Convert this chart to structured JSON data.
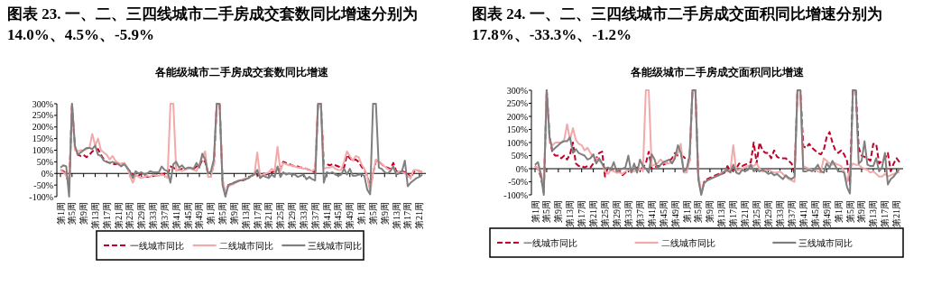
{
  "chart_data": [
    {
      "type": "line",
      "title": "图表 23. 一、二、三四线城市二手房成交套数同比增速分别为 14.0%、4.5%、-5.9%",
      "subtitle": "各能级城市二手房成交套数同比增速",
      "legend": "bottom",
      "ylim": [
        -100,
        300
      ],
      "yticks": [
        {
          "value": -100,
          "label": "-100%"
        },
        {
          "value": -50,
          "label": "-50%"
        },
        {
          "value": 0,
          "label": "0%"
        },
        {
          "value": 50,
          "label": "50%"
        },
        {
          "value": 100,
          "label": "100%"
        },
        {
          "value": 150,
          "label": "150%"
        },
        {
          "value": 200,
          "label": "200%"
        },
        {
          "value": 250,
          "label": "250%"
        },
        {
          "value": 300,
          "label": "300%"
        }
      ],
      "categories": [
        "第1周",
        null,
        null,
        null,
        "第5周",
        null,
        null,
        null,
        "第9周",
        null,
        null,
        null,
        "第13周",
        null,
        null,
        null,
        "第17周",
        null,
        null,
        null,
        "第21周",
        null,
        null,
        null,
        "第25周",
        null,
        null,
        null,
        "第29周",
        null,
        null,
        null,
        "第33周",
        null,
        null,
        null,
        "第37周",
        null,
        null,
        null,
        "第41周",
        null,
        null,
        null,
        "第45周",
        null,
        null,
        null,
        "第49周",
        null,
        null,
        null,
        "第1周",
        null,
        null,
        null,
        "第5周",
        null,
        null,
        null,
        "第9周",
        null,
        null,
        null,
        "第13周",
        null,
        null,
        null,
        "第17周",
        null,
        null,
        null,
        "第21周",
        null,
        null,
        null,
        "第25周",
        null,
        null,
        null,
        "第29周",
        null,
        null,
        null,
        "第33周",
        null,
        null,
        null,
        "第37周",
        null,
        null,
        null,
        "第41周",
        null,
        null,
        null,
        "第45周",
        null,
        null,
        null,
        "第49周",
        null,
        null,
        null,
        "第1周",
        null,
        null,
        null,
        "第5周",
        null,
        null,
        null,
        "第9周",
        null,
        null,
        null,
        "第13周",
        null,
        null,
        null,
        "第17周",
        null,
        null,
        null,
        "第21周",
        null
      ],
      "series": [
        {
          "name": "一线城市同比",
          "color": "#c00028",
          "line_style": "dashed",
          "values": [
            15,
            10,
            0,
            -60,
            300,
            110,
            80,
            75,
            80,
            70,
            80,
            95,
            100,
            105,
            80,
            60,
            50,
            45,
            40,
            40,
            45,
            40,
            45,
            25,
            5,
            -5,
            -15,
            -10,
            0,
            -10,
            -15,
            -15,
            -10,
            -10,
            -5,
            -5,
            0,
            -5,
            30,
            25,
            15,
            15,
            20,
            20,
            20,
            20,
            20,
            30,
            30,
            60,
            50,
            0,
            5,
            30,
            300,
            300,
            -30,
            -90,
            -50,
            -45,
            -40,
            -35,
            -30,
            -30,
            -25,
            -15,
            -10,
            -5,
            -5,
            -10,
            0,
            -5,
            0,
            5,
            10,
            15,
            20,
            50,
            45,
            40,
            35,
            30,
            30,
            25,
            25,
            20,
            15,
            10,
            5,
            300,
            300,
            40,
            40,
            35,
            40,
            35,
            30,
            25,
            25,
            80,
            65,
            55,
            60,
            50,
            30,
            15,
            -10,
            -60,
            0,
            55,
            50,
            40,
            30,
            25,
            20,
            45,
            10,
            5,
            10,
            5,
            0,
            -20,
            5,
            15,
            10,
            5
          ]
        },
        {
          "name": "二线城市同比",
          "color": "#f2a9a9",
          "line_style": "solid",
          "values": [
            15,
            5,
            -10,
            -50,
            300,
            100,
            95,
            100,
            100,
            105,
            110,
            170,
            120,
            150,
            100,
            90,
            80,
            60,
            75,
            55,
            45,
            40,
            45,
            30,
            -10,
            -40,
            -5,
            -15,
            -20,
            -15,
            -10,
            -15,
            -5,
            -10,
            -10,
            -5,
            -10,
            -20,
            300,
            300,
            10,
            15,
            10,
            15,
            20,
            20,
            15,
            10,
            40,
            70,
            95,
            -15,
            -15,
            40,
            300,
            300,
            -20,
            -90,
            -55,
            -50,
            -45,
            -35,
            -30,
            -25,
            -20,
            -20,
            -10,
            -5,
            90,
            -15,
            -5,
            0,
            5,
            20,
            10,
            115,
            10,
            45,
            40,
            35,
            35,
            30,
            25,
            25,
            20,
            20,
            15,
            10,
            20,
            300,
            300,
            20,
            25,
            25,
            30,
            20,
            15,
            15,
            50,
            95,
            75,
            55,
            75,
            70,
            40,
            20,
            -10,
            -80,
            0,
            60,
            50,
            40,
            30,
            20,
            15,
            30,
            0,
            10,
            5,
            0,
            -10,
            -20,
            15,
            15,
            10,
            5
          ]
        },
        {
          "name": "三线城市同比",
          "color": "#7f7f7f",
          "line_style": "solid",
          "values": [
            25,
            35,
            30,
            -100,
            300,
            120,
            80,
            90,
            100,
            110,
            110,
            105,
            120,
            80,
            75,
            55,
            50,
            45,
            50,
            45,
            40,
            30,
            40,
            25,
            10,
            -20,
            10,
            0,
            5,
            -5,
            0,
            10,
            5,
            5,
            5,
            30,
            15,
            10,
            -40,
            40,
            50,
            25,
            35,
            20,
            25,
            25,
            20,
            45,
            25,
            85,
            60,
            0,
            10,
            60,
            300,
            300,
            -50,
            -100,
            -50,
            -45,
            -40,
            -35,
            -30,
            -30,
            -25,
            -20,
            -10,
            -5,
            15,
            -20,
            -10,
            -15,
            -20,
            -5,
            -15,
            30,
            -15,
            5,
            -5,
            0,
            -5,
            -5,
            -15,
            -10,
            -5,
            -25,
            -15,
            -25,
            -30,
            300,
            300,
            -40,
            5,
            0,
            5,
            -5,
            -10,
            -5,
            20,
            -5,
            20,
            -10,
            -10,
            -5,
            -5,
            -10,
            -70,
            -90,
            300,
            300,
            25,
            20,
            5,
            0,
            10,
            30,
            -5,
            0,
            10,
            55,
            -55,
            -40,
            -30,
            -20,
            -15,
            -5
          ]
        }
      ]
    },
    {
      "type": "line",
      "title": "图表 24. 一、二、三四线城市二手房成交面积同比增速分别为 17.8%、-33.3%、-1.2%",
      "subtitle": "各能级城市二手房成交面积同比增速",
      "legend": "bottom",
      "ylim": [
        -100,
        300
      ],
      "yticks": [
        {
          "value": -100,
          "label": "-100%"
        },
        {
          "value": -50,
          "label": "-50%"
        },
        {
          "value": 0,
          "label": "0%"
        },
        {
          "value": 50,
          "label": "50%"
        },
        {
          "value": 100,
          "label": "100%"
        },
        {
          "value": 150,
          "label": "150%"
        },
        {
          "value": 200,
          "label": "200%"
        },
        {
          "value": 250,
          "label": "250%"
        },
        {
          "value": 300,
          "label": "300%"
        }
      ],
      "categories": [
        "第1周",
        null,
        null,
        null,
        "第5周",
        null,
        null,
        null,
        "第9周",
        null,
        null,
        null,
        "第13周",
        null,
        null,
        null,
        "第17周",
        null,
        null,
        null,
        "第21周",
        null,
        null,
        null,
        "第25周",
        null,
        null,
        null,
        "第29周",
        null,
        null,
        null,
        "第33周",
        null,
        null,
        null,
        "第37周",
        null,
        null,
        null,
        "第41周",
        null,
        null,
        null,
        "第45周",
        null,
        null,
        null,
        "第49周",
        null,
        null,
        null,
        "第1周",
        null,
        null,
        null,
        "第5周",
        null,
        null,
        null,
        "第9周",
        null,
        null,
        null,
        "第13周",
        null,
        null,
        null,
        "第17周",
        null,
        null,
        null,
        "第21周",
        null,
        null,
        null,
        "第25周",
        null,
        null,
        null,
        "第29周",
        null,
        null,
        null,
        "第33周",
        null,
        null,
        null,
        "第37周",
        null,
        null,
        null,
        "第41周",
        null,
        null,
        null,
        "第45周",
        null,
        null,
        null,
        "第49周",
        null,
        null,
        null,
        "第1周",
        null,
        null,
        null,
        "第5周",
        null,
        null,
        null,
        "第9周",
        null,
        null,
        null,
        "第13周",
        null,
        null,
        null,
        "第17周",
        null,
        null,
        null,
        "第21周",
        null
      ],
      "series": [
        {
          "name": "一线城市同比",
          "color": "#c00028",
          "line_style": "dashed",
          "values": [
            10,
            0,
            -30,
            -90,
            300,
            120,
            60,
            50,
            50,
            40,
            50,
            35,
            55,
            100,
            20,
            10,
            10,
            5,
            10,
            5,
            20,
            40,
            60,
            65,
            -30,
            5,
            0,
            -10,
            -15,
            -10,
            -25,
            -15,
            -10,
            -5,
            -10,
            5,
            -5,
            5,
            20,
            65,
            0,
            5,
            10,
            10,
            15,
            20,
            30,
            40,
            60,
            50,
            50,
            45,
            35,
            30,
            300,
            300,
            -30,
            -95,
            -50,
            -40,
            -35,
            -30,
            -25,
            -20,
            -20,
            -15,
            10,
            -10,
            -5,
            0,
            20,
            10,
            15,
            20,
            25,
            100,
            20,
            100,
            70,
            60,
            60,
            40,
            70,
            45,
            40,
            40,
            40,
            30,
            20,
            -20,
            300,
            300,
            85,
            80,
            95,
            80,
            70,
            60,
            55,
            70,
            120,
            140,
            100,
            70,
            60,
            70,
            55,
            30,
            -60,
            300,
            300,
            80,
            50,
            45,
            40,
            30,
            95,
            95,
            20,
            30,
            40,
            60,
            -10,
            20,
            40,
            25
          ]
        },
        {
          "name": "二线城市同比",
          "color": "#f2a9a9",
          "line_style": "solid",
          "values": [
            10,
            0,
            -20,
            -60,
            300,
            100,
            90,
            100,
            100,
            100,
            110,
            170,
            110,
            155,
            110,
            95,
            90,
            70,
            80,
            60,
            45,
            40,
            30,
            20,
            -10,
            -20,
            -5,
            -10,
            -15,
            -15,
            -20,
            -10,
            -5,
            -10,
            -10,
            -5,
            0,
            -10,
            300,
            300,
            10,
            15,
            20,
            35,
            25,
            20,
            20,
            25,
            50,
            60,
            95,
            -15,
            -15,
            30,
            300,
            300,
            -20,
            -90,
            -55,
            -45,
            -40,
            -35,
            -30,
            -25,
            -15,
            -10,
            -10,
            -5,
            90,
            -10,
            -5,
            0,
            5,
            10,
            15,
            10,
            20,
            0,
            -10,
            -10,
            -5,
            -10,
            -15,
            -15,
            -10,
            -20,
            -30,
            -40,
            -45,
            -50,
            300,
            300,
            10,
            5,
            0,
            -5,
            -5,
            -10,
            -15,
            40,
            30,
            20,
            15,
            20,
            15,
            10,
            -10,
            -50,
            0,
            20,
            15,
            15,
            5,
            0,
            -5,
            -15,
            -10,
            -20,
            -30,
            -30,
            -20,
            -30,
            -25,
            -20,
            -15,
            -15
          ]
        },
        {
          "name": "三线城市同比",
          "color": "#7f7f7f",
          "line_style": "solid",
          "values": [
            15,
            25,
            -20,
            -100,
            300,
            120,
            70,
            80,
            90,
            100,
            105,
            105,
            120,
            60,
            75,
            60,
            55,
            50,
            35,
            40,
            55,
            20,
            40,
            20,
            0,
            5,
            -5,
            25,
            -10,
            -5,
            0,
            5,
            50,
            -15,
            20,
            -15,
            35,
            10,
            0,
            -15,
            55,
            35,
            0,
            15,
            25,
            30,
            35,
            20,
            40,
            90,
            60,
            -10,
            0,
            50,
            300,
            300,
            -40,
            -100,
            -55,
            -45,
            -40,
            -35,
            -30,
            -25,
            -20,
            -10,
            -5,
            -15,
            15,
            -15,
            -20,
            -5,
            -10,
            -5,
            15,
            -10,
            -5,
            -10,
            -5,
            -10,
            -20,
            -15,
            -25,
            -20,
            -30,
            -40,
            -25,
            -35,
            -40,
            -30,
            300,
            300,
            -10,
            -10,
            -5,
            -10,
            0,
            15,
            -10,
            -15,
            20,
            5,
            30,
            10,
            -10,
            -10,
            -15,
            -70,
            -95,
            300,
            300,
            20,
            30,
            105,
            15,
            10,
            10,
            40,
            -10,
            5,
            60,
            -60,
            -40,
            -30,
            -15,
            0
          ]
        }
      ]
    }
  ]
}
